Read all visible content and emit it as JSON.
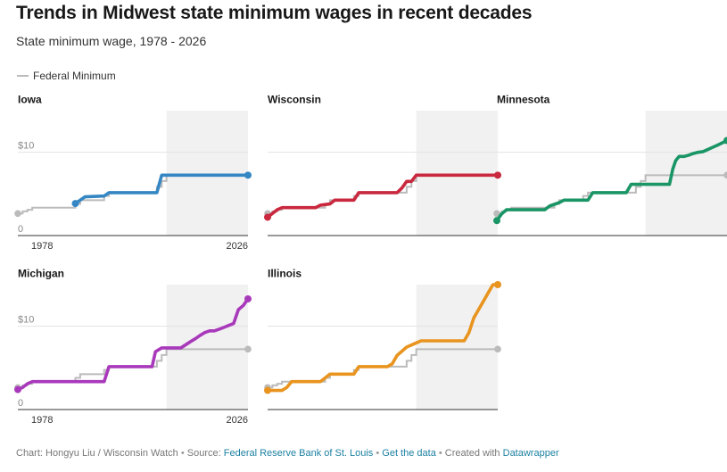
{
  "title": "Trends in Midwest state minimum wages in recent decades",
  "subtitle": "State minimum wage, 1978 - 2026",
  "legend": {
    "label": "Federal Minimum",
    "color": "#bbbbbb"
  },
  "footer": {
    "chart_label": "Chart: Hongyu Liu / Wisconsin Watch",
    "source_label": "Source:",
    "source_link": "Federal Reserve Bank of St. Louis",
    "data_link": "Get the data",
    "created_label": "Created with",
    "created_link": "Datawrapper"
  },
  "chart_data": {
    "type": "line",
    "layout": "small-multiples",
    "xlim": [
      1978,
      2026
    ],
    "ylim": [
      0,
      15
    ],
    "x_ticks": [
      "1978",
      "2026"
    ],
    "y_ticks": [
      {
        "value": 0,
        "label": "0"
      },
      {
        "value": 10,
        "label": "$10"
      }
    ],
    "highlight_range": [
      2009,
      2026
    ],
    "federal_minimum": {
      "name": "Federal Minimum",
      "color": "#bbbbbb",
      "points": [
        [
          1978,
          2.65
        ],
        [
          1979,
          2.9
        ],
        [
          1980,
          3.1
        ],
        [
          1981,
          3.35
        ],
        [
          1990,
          3.8
        ],
        [
          1991,
          4.25
        ],
        [
          1996,
          4.75
        ],
        [
          1997,
          5.15
        ],
        [
          2007,
          5.85
        ],
        [
          2008,
          6.55
        ],
        [
          2009,
          7.25
        ],
        [
          2026,
          7.25
        ]
      ]
    },
    "panels": [
      {
        "name": "Iowa",
        "color": "#3587c4",
        "points": [
          [
            1990,
            3.85
          ],
          [
            1991,
            4.25
          ],
          [
            1992,
            4.65
          ],
          [
            1996,
            4.75
          ],
          [
            1997,
            5.15
          ],
          [
            2007,
            5.15
          ],
          [
            2007.5,
            6.2
          ],
          [
            2008,
            7.25
          ],
          [
            2026,
            7.25
          ]
        ]
      },
      {
        "name": "Wisconsin",
        "color": "#c9283e",
        "points": [
          [
            1978,
            2.2
          ],
          [
            1980,
            3.1
          ],
          [
            1981,
            3.35
          ],
          [
            1988,
            3.35
          ],
          [
            1989,
            3.65
          ],
          [
            1991,
            3.8
          ],
          [
            1992,
            4.25
          ],
          [
            1996,
            4.25
          ],
          [
            1997,
            5.15
          ],
          [
            2005,
            5.15
          ],
          [
            2006,
            5.7
          ],
          [
            2007,
            6.5
          ],
          [
            2008,
            6.5
          ],
          [
            2009,
            7.25
          ],
          [
            2026,
            7.25
          ]
        ]
      },
      {
        "name": "Minnesota",
        "color": "#1a9566",
        "points": [
          [
            1978,
            1.8
          ],
          [
            1979,
            2.6
          ],
          [
            1980,
            3.1
          ],
          [
            1988,
            3.1
          ],
          [
            1989,
            3.55
          ],
          [
            1991,
            3.95
          ],
          [
            1992,
            4.25
          ],
          [
            1997,
            4.25
          ],
          [
            1998,
            5.15
          ],
          [
            2005,
            5.15
          ],
          [
            2006,
            6.15
          ],
          [
            2014,
            6.15
          ],
          [
            2014.7,
            8.0
          ],
          [
            2015.3,
            9.0
          ],
          [
            2016,
            9.5
          ],
          [
            2017,
            9.5
          ],
          [
            2018,
            9.65
          ],
          [
            2019,
            9.86
          ],
          [
            2020,
            10.0
          ],
          [
            2021,
            10.08
          ],
          [
            2022,
            10.33
          ],
          [
            2023,
            10.59
          ],
          [
            2024,
            10.85
          ],
          [
            2025,
            11.13
          ],
          [
            2026,
            11.41
          ]
        ]
      },
      {
        "name": "Michigan",
        "color": "#a939bb",
        "points": [
          [
            1978,
            2.4
          ],
          [
            1979,
            2.65
          ],
          [
            1980,
            3.1
          ],
          [
            1981,
            3.35
          ],
          [
            1996,
            3.35
          ],
          [
            1997,
            5.15
          ],
          [
            2006,
            5.15
          ],
          [
            2006.7,
            6.95
          ],
          [
            2008,
            7.4
          ],
          [
            2012,
            7.4
          ],
          [
            2014,
            8.15
          ],
          [
            2015,
            8.5
          ],
          [
            2016,
            8.9
          ],
          [
            2017,
            9.25
          ],
          [
            2018,
            9.45
          ],
          [
            2019,
            9.45
          ],
          [
            2020,
            9.65
          ],
          [
            2021,
            9.87
          ],
          [
            2022,
            10.1
          ],
          [
            2023,
            10.33
          ],
          [
            2024,
            12.0
          ],
          [
            2025,
            12.48
          ],
          [
            2026,
            13.29
          ]
        ]
      },
      {
        "name": "Illinois",
        "color": "#e8941f",
        "points": [
          [
            1978,
            2.3
          ],
          [
            1981,
            2.3
          ],
          [
            1982,
            2.65
          ],
          [
            1983,
            3.35
          ],
          [
            1989,
            3.35
          ],
          [
            1990,
            3.8
          ],
          [
            1991,
            4.25
          ],
          [
            1996,
            4.25
          ],
          [
            1997,
            5.15
          ],
          [
            2003,
            5.15
          ],
          [
            2004,
            5.5
          ],
          [
            2005,
            6.5
          ],
          [
            2007,
            7.5
          ],
          [
            2008,
            7.75
          ],
          [
            2009,
            8.0
          ],
          [
            2010,
            8.25
          ],
          [
            2019,
            8.25
          ],
          [
            2020,
            9.25
          ],
          [
            2021,
            11.0
          ],
          [
            2022,
            12.0
          ],
          [
            2023,
            13.0
          ],
          [
            2024,
            14.0
          ],
          [
            2025,
            15.0
          ],
          [
            2026,
            15.0
          ]
        ]
      }
    ]
  }
}
